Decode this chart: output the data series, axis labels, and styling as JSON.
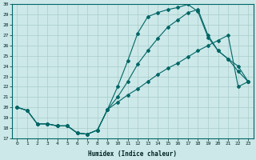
{
  "xlabel": "Humidex (Indice chaleur)",
  "bg_color": "#cce8e8",
  "line_color": "#006666",
  "grid_color": "#aacccc",
  "xlim": [
    -0.5,
    23.5
  ],
  "ylim": [
    17,
    30
  ],
  "xticks": [
    0,
    1,
    2,
    3,
    4,
    5,
    6,
    7,
    8,
    9,
    10,
    11,
    12,
    13,
    14,
    15,
    16,
    17,
    18,
    19,
    20,
    21,
    22,
    23
  ],
  "yticks": [
    17,
    18,
    19,
    20,
    21,
    22,
    23,
    24,
    25,
    26,
    27,
    28,
    29,
    30
  ],
  "line_top_x": [
    0,
    1,
    2,
    3,
    4,
    5,
    6,
    7,
    8,
    9,
    10,
    11,
    12,
    13,
    14,
    15,
    16,
    17,
    18,
    19,
    20,
    21,
    22,
    23
  ],
  "line_top_y": [
    20.0,
    19.7,
    18.4,
    18.4,
    18.2,
    18.2,
    17.5,
    17.4,
    17.8,
    19.8,
    22.0,
    24.5,
    27.2,
    28.8,
    29.2,
    29.5,
    29.7,
    30.0,
    29.3,
    26.8,
    25.5,
    24.7,
    23.5,
    22.5
  ],
  "line_mid_x": [
    0,
    1,
    2,
    3,
    4,
    5,
    6,
    7,
    8,
    9,
    10,
    11,
    12,
    13,
    14,
    15,
    16,
    17,
    18,
    19,
    20,
    21,
    22,
    23
  ],
  "line_mid_y": [
    20.0,
    19.7,
    18.4,
    18.4,
    18.2,
    18.2,
    17.5,
    17.4,
    17.8,
    19.8,
    21.0,
    22.5,
    24.2,
    25.5,
    26.7,
    27.8,
    28.5,
    29.2,
    29.5,
    27.0,
    25.5,
    24.7,
    24.0,
    22.5
  ],
  "line_bot_x": [
    0,
    1,
    2,
    3,
    4,
    5,
    6,
    7,
    8,
    9,
    10,
    11,
    12,
    13,
    14,
    15,
    16,
    17,
    18,
    19,
    20,
    21,
    22,
    23
  ],
  "line_bot_y": [
    20.0,
    19.7,
    18.4,
    18.4,
    18.2,
    18.2,
    17.5,
    17.4,
    17.8,
    19.8,
    20.5,
    21.2,
    21.8,
    22.5,
    23.2,
    23.8,
    24.3,
    24.9,
    25.5,
    26.0,
    26.5,
    27.0,
    22.0,
    22.5
  ]
}
